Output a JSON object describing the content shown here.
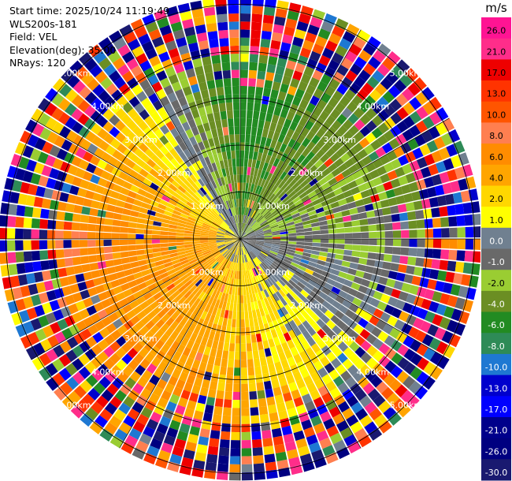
{
  "header": {
    "start_time": "Start time: 2025/10/24 11:19:49",
    "instrument": "WLS200s-181",
    "field": "Field: VEL",
    "elevation": "Elevation(deg): 35.00",
    "nrays": "NRays: 120"
  },
  "colorbar": {
    "unit": "m/s",
    "levels": [
      "26.0",
      "21.0",
      "17.0",
      "13.0",
      "10.0",
      "8.0",
      "6.0",
      "4.0",
      "2.0",
      "1.0",
      "0.0",
      "-1.0",
      "-2.0",
      "-4.0",
      "-6.0",
      "-8.0",
      "-10.0",
      "-13.0",
      "-17.0",
      "-21.0",
      "-26.0",
      "-30.0"
    ],
    "colors": [
      "#ff1493",
      "#ff2d8a",
      "#ee0000",
      "#ff3300",
      "#ff5500",
      "#ff7f50",
      "#ff8c00",
      "#ffa500",
      "#ffd700",
      "#ffff00",
      "#708090",
      "#696969",
      "#9acd32",
      "#6b8e23",
      "#228b22",
      "#2e8b57",
      "#1e78d2",
      "#0000cd",
      "#0000ff",
      "#00008b",
      "#000080",
      "#191970"
    ]
  },
  "chart_data": {
    "type": "heatmap",
    "subtype": "ppi-polar",
    "field": "VEL",
    "units": "m/s",
    "elevation_deg": 35.0,
    "nrays": 120,
    "range_rings_km": [
      1.0,
      2.0,
      3.0,
      4.0,
      5.0
    ],
    "range_ring_labels": [
      "1.00km",
      "2.00km",
      "3.00km",
      "4.00km",
      "5.00km"
    ],
    "max_range_km": 5.15,
    "value_range": [
      -30.0,
      26.0
    ],
    "velocity_pattern": {
      "description_sectors": [
        {
          "azimuth_deg": 0,
          "value": -5
        },
        {
          "azimuth_deg": 45,
          "value": -3
        },
        {
          "azimuth_deg": 90,
          "value": -1
        },
        {
          "azimuth_deg": 135,
          "value": 0.5
        },
        {
          "azimuth_deg": 180,
          "value": 4
        },
        {
          "azimuth_deg": 225,
          "value": 6
        },
        {
          "azimuth_deg": 270,
          "value": 7
        },
        {
          "azimuth_deg": 315,
          "value": 3
        }
      ]
    }
  }
}
